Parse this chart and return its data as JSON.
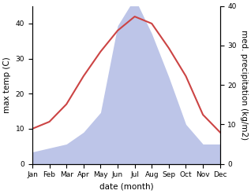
{
  "months": [
    "Jan",
    "Feb",
    "Mar",
    "Apr",
    "May",
    "Jun",
    "Jul",
    "Aug",
    "Sep",
    "Oct",
    "Nov",
    "Dec"
  ],
  "temperature": [
    10,
    12,
    17,
    25,
    32,
    38,
    42,
    40,
    33,
    25,
    14,
    9
  ],
  "precipitation": [
    3,
    4,
    5,
    8,
    13,
    35,
    42,
    33,
    22,
    10,
    5,
    5
  ],
  "temp_color": "#cc4444",
  "precip_fill_color": "#bdc5e8",
  "temp_ylim": [
    0,
    45
  ],
  "precip_ylim": [
    0,
    40
  ],
  "temp_yticks": [
    0,
    10,
    20,
    30,
    40
  ],
  "precip_yticks": [
    0,
    10,
    20,
    30,
    40
  ],
  "ylabel_left": "max temp (C)",
  "ylabel_right": "med. precipitation (kg/m2)",
  "xlabel": "date (month)",
  "label_fontsize": 7.5,
  "tick_fontsize": 6.5
}
